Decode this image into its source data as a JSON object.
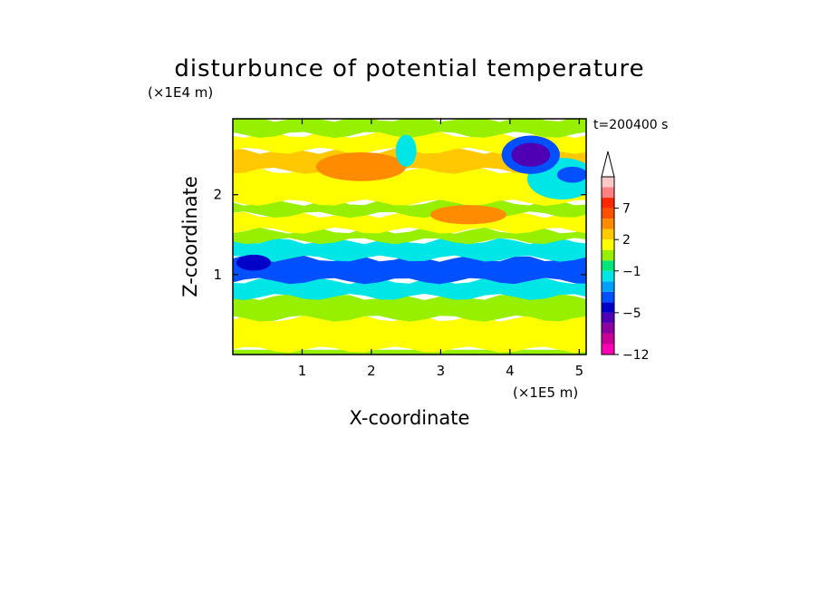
{
  "chart_data": {
    "type": "heatmap",
    "title": "disturbunce of potential temperature",
    "xlabel": "X-coordinate",
    "ylabel": "Z-coordinate",
    "x_scale_label": "(×1E5 m)",
    "y_scale_label": "(×1E4 m)",
    "time_label": "t=200400 s",
    "xlim": [
      0,
      5.1
    ],
    "ylim": [
      0,
      2.95
    ],
    "x_ticks": [
      1,
      2,
      3,
      4,
      5
    ],
    "y_ticks": [
      1,
      2
    ],
    "colorbar": {
      "levels": [
        -12,
        -10,
        -8,
        -6,
        -5,
        -4,
        -3,
        -2,
        -1,
        0,
        1,
        2,
        3,
        5,
        7,
        9,
        11
      ],
      "colors": [
        "#ff00b4",
        "#c80096",
        "#8c00a0",
        "#5000b4",
        "#0000c8",
        "#0050ff",
        "#00a0ff",
        "#00e6e6",
        "#00e678",
        "#96f000",
        "#ffff00",
        "#ffc800",
        "#ff8c00",
        "#ff5000",
        "#ff2800",
        "#ff8080",
        "#ffc8c8"
      ],
      "tick_labels": [
        {
          "value": -12,
          "text": "−12"
        },
        {
          "value": -5,
          "text": "−5"
        },
        {
          "value": -1,
          "text": "−1"
        },
        {
          "value": 2,
          "text": "2"
        },
        {
          "value": 7,
          "text": "7"
        }
      ],
      "extend": "max"
    },
    "bands": [
      {
        "z": [
          0.0,
          0.06
        ],
        "value": 0.5
      },
      {
        "z": [
          0.06,
          0.45
        ],
        "value": 1.6
      },
      {
        "z": [
          0.45,
          0.72
        ],
        "value": 0.5
      },
      {
        "z": [
          0.72,
          0.92
        ],
        "value": -1.4
      },
      {
        "z": [
          0.92,
          1.2
        ],
        "value": -3.5
      },
      {
        "z": [
          1.2,
          1.42
        ],
        "value": -1.3
      },
      {
        "z": [
          1.42,
          1.55
        ],
        "value": 0.5
      },
      {
        "z": [
          1.55,
          1.75
        ],
        "value": 1.5
      },
      {
        "z": [
          1.75,
          1.9
        ],
        "value": 0.6
      },
      {
        "z": [
          1.9,
          2.3
        ],
        "value": 1.7
      },
      {
        "z": [
          2.3,
          2.55
        ],
        "value": 2.6
      },
      {
        "z": [
          2.55,
          2.75
        ],
        "value": 1.4
      },
      {
        "z": [
          2.75,
          2.95
        ],
        "value": 0.7
      }
    ],
    "features": [
      {
        "x": 4.3,
        "z": 2.5,
        "rx": 0.28,
        "rz": 0.15,
        "value": -5.5
      },
      {
        "x": 4.3,
        "z": 2.5,
        "rx": 0.42,
        "rz": 0.24,
        "value": -3.5
      },
      {
        "x": 4.9,
        "z": 2.25,
        "rx": 0.22,
        "rz": 0.1,
        "value": -3.5
      },
      {
        "x": 4.75,
        "z": 2.2,
        "rx": 0.5,
        "rz": 0.26,
        "value": -1.2
      },
      {
        "x": 1.85,
        "z": 2.35,
        "rx": 0.65,
        "rz": 0.18,
        "value": 3.5
      },
      {
        "x": 3.4,
        "z": 1.75,
        "rx": 0.55,
        "rz": 0.12,
        "value": 3.0
      },
      {
        "x": 0.3,
        "z": 1.15,
        "rx": 0.25,
        "rz": 0.1,
        "value": -4.5
      },
      {
        "x": 2.5,
        "z": 2.55,
        "rx": 0.15,
        "rz": 0.2,
        "value": -1.2
      }
    ]
  }
}
